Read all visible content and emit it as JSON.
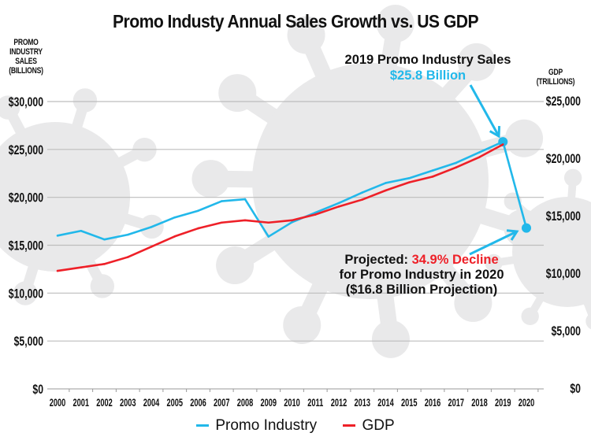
{
  "chart_data": {
    "type": "line",
    "title": "Promo Industy Annual Sales Growth vs. US GDP",
    "xlabel": "",
    "ylabel_left": [
      "PROMO",
      "INDUSTRY",
      "SALES",
      "(BILLIONS)"
    ],
    "ylabel_right": [
      "GDP",
      "(TRILLIONS)"
    ],
    "categories": [
      "2000",
      "2001",
      "2002",
      "2003",
      "2004",
      "2005",
      "2006",
      "2007",
      "2008",
      "2009",
      "2010",
      "2011",
      "2012",
      "2013",
      "2014",
      "2015",
      "2016",
      "2017",
      "2018",
      "2019",
      "2020"
    ],
    "left_axis": {
      "ylim": [
        0,
        30000
      ],
      "ticks": [
        0,
        5000,
        10000,
        15000,
        20000,
        25000,
        30000
      ],
      "tick_labels": [
        "$0",
        "$5,000",
        "$10,000",
        "$15,000",
        "$20,000",
        "$25,000",
        "$30,000"
      ]
    },
    "right_axis": {
      "ylim": [
        0,
        25000
      ],
      "ticks": [
        0,
        5000,
        10000,
        15000,
        20000,
        25000
      ],
      "tick_labels": [
        "$0",
        "$5,000",
        "$10,000",
        "$15,000",
        "$20,000",
        "$25,000"
      ]
    },
    "grid": "horizontal",
    "legend_position": "bottom",
    "series": [
      {
        "name": "Promo Industry",
        "axis": "left",
        "color": "#22b8ea",
        "values": [
          16000,
          16500,
          15600,
          16100,
          16900,
          17900,
          18600,
          19600,
          19800,
          15900,
          17400,
          18400,
          19400,
          20500,
          21500,
          22000,
          22800,
          23600,
          24700,
          25800,
          16800
        ],
        "markers": [
          "2019",
          "2020"
        ]
      },
      {
        "name": "GDP",
        "axis": "right",
        "color": "#ee2028",
        "values": [
          10200,
          10500,
          10800,
          11400,
          12300,
          13200,
          13900,
          14400,
          14600,
          14400,
          14600,
          15100,
          15800,
          16400,
          17200,
          17900,
          18400,
          19200,
          20100,
          21200,
          null
        ]
      }
    ],
    "annotations": [
      {
        "target": "2019",
        "line1": "2019 Promo Industry Sales",
        "line2": "$25.8 Billion"
      },
      {
        "target": "2020",
        "prefix": "Projected: ",
        "highlight": "34.9% Decline",
        "line2": "for Promo Industry in 2020",
        "line3": "($16.8 Billion Projection)"
      }
    ]
  },
  "colors": {
    "promo": "#22b8ea",
    "gdp": "#ee2028",
    "grid": "#bdbdbd",
    "virus_background": "#e9e9ea"
  }
}
